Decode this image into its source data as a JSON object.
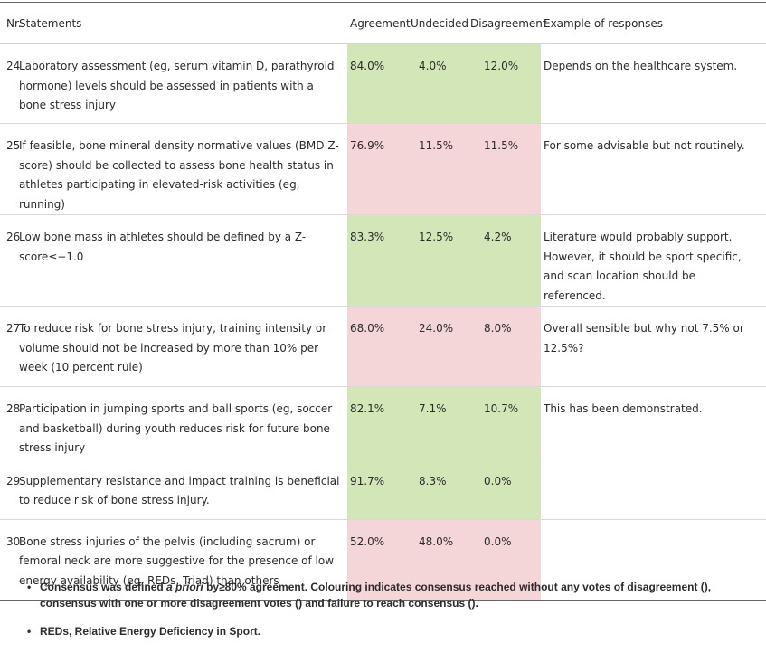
{
  "table": {
    "headers": {
      "nr": "Nr.",
      "statements": "Statements",
      "agreement": "Agreement",
      "undecided": "Undecided",
      "disagreement": "Disagreement",
      "example": "Example of responses"
    },
    "rows": [
      {
        "nr": "24",
        "statement": "Laboratory assessment (eg, serum vitamin D, parathyroid hormone) levels should be assessed in patients with a bone stress injury",
        "agreement": "84.0%",
        "undecided": "4.0%",
        "disagreement": "12.0%",
        "example": "Depends on the healthcare system.",
        "consensus_color": "green"
      },
      {
        "nr": "25",
        "statement": "If feasible, bone mineral density normative values (BMD Z-score) should be collected to assess bone health status in athletes participating in elevated-risk activities (eg, running)",
        "agreement": "76.9%",
        "undecided": "11.5%",
        "disagreement": "11.5%",
        "example": "For some advisable but not routinely.",
        "consensus_color": "red"
      },
      {
        "nr": "26",
        "statement": "Low bone mass in athletes should be defined by a Z-score≤−1.0",
        "agreement": "83.3%",
        "undecided": "12.5%",
        "disagreement": "4.2%",
        "example": "Literature would probably support. However, it should be sport specific, and scan location should be referenced.",
        "consensus_color": "green"
      },
      {
        "nr": "27",
        "statement": "To reduce risk for bone stress injury, training intensity or volume should not be increased by more than 10% per week (10 percent rule)",
        "agreement": "68.0%",
        "undecided": "24.0%",
        "disagreement": "8.0%",
        "example": "Overall sensible but why not 7.5% or 12.5%?",
        "consensus_color": "red"
      },
      {
        "nr": "28",
        "statement": "Participation in jumping sports and ball sports (eg, soccer and basketball) during youth reduces risk for future bone stress injury",
        "agreement": "82.1%",
        "undecided": "7.1%",
        "disagreement": "10.7%",
        "example": "This has been demonstrated.",
        "consensus_color": "green"
      },
      {
        "nr": "29",
        "statement": "Supplementary resistance and impact training is beneficial to reduce risk of bone stress injury.",
        "agreement": "91.7%",
        "undecided": "8.3%",
        "disagreement": "0.0%",
        "example": "",
        "consensus_color": "green"
      },
      {
        "nr": "30",
        "statement": "Bone stress injuries of the pelvis (including sacrum) or femoral neck are more suggestive for the presence of low energy availability (eg, REDs, Triad) than others",
        "agreement": "52.0%",
        "undecided": "48.0%",
        "disagreement": "0.0%",
        "example": "",
        "consensus_color": "red"
      }
    ]
  },
  "colors": {
    "green": "#d2e6b8",
    "red": "#f5d6d8"
  },
  "notes": {
    "bullet": "•",
    "note1_before": "Consensus was defined ",
    "note1_italic": "a priori",
    "note1_after": " by≥80% agreement. Colouring indicates consensus reached without any votes of disagreement (), consensus with one or more disagreement votes () and failure to reach consensus ().",
    "note2": "REDs, Relative Energy Deficiency in Sport."
  }
}
